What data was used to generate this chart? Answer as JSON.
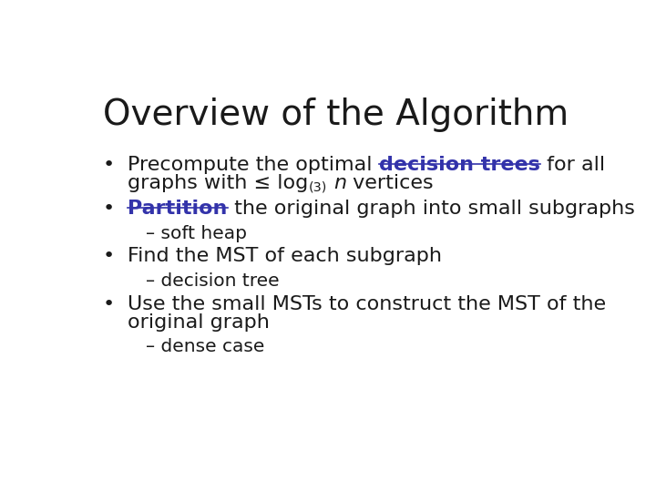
{
  "title": "Overview of the Algorithm",
  "title_fontsize": 28,
  "title_color": "#1a1a1a",
  "background_color": "#ffffff",
  "body_fontsize": 16,
  "sub_fontsize": 14.5,
  "link_color": "#3333aa",
  "text_color": "#1a1a1a",
  "items": [
    {
      "type": "bullet",
      "lines": [
        [
          {
            "text": "Precompute the optimal ",
            "style": "normal"
          },
          {
            "text": "decision trees",
            "style": "bold_underline",
            "color": "#3333aa"
          },
          {
            "text": " for all",
            "style": "normal"
          }
        ],
        [
          {
            "text": "graphs with ≤ log",
            "style": "normal"
          },
          {
            "text": "(3)",
            "style": "superscript"
          },
          {
            "text": " ",
            "style": "normal"
          },
          {
            "text": "n",
            "style": "italic"
          },
          {
            "text": " vertices",
            "style": "normal"
          }
        ]
      ]
    },
    {
      "type": "bullet",
      "lines": [
        [
          {
            "text": "Partition",
            "style": "bold_underline",
            "color": "#3333aa"
          },
          {
            "text": " the original graph into small subgraphs",
            "style": "normal"
          }
        ]
      ]
    },
    {
      "type": "sub",
      "text": "– soft heap"
    },
    {
      "type": "bullet",
      "lines": [
        [
          {
            "text": "Find the MST of each subgraph",
            "style": "normal"
          }
        ]
      ]
    },
    {
      "type": "sub",
      "text": "– decision tree"
    },
    {
      "type": "bullet",
      "lines": [
        [
          {
            "text": "Use the small MSTs to construct the MST of the",
            "style": "normal"
          }
        ],
        [
          {
            "text": "original graph",
            "style": "normal"
          }
        ]
      ]
    },
    {
      "type": "sub",
      "text": "– dense case"
    }
  ]
}
